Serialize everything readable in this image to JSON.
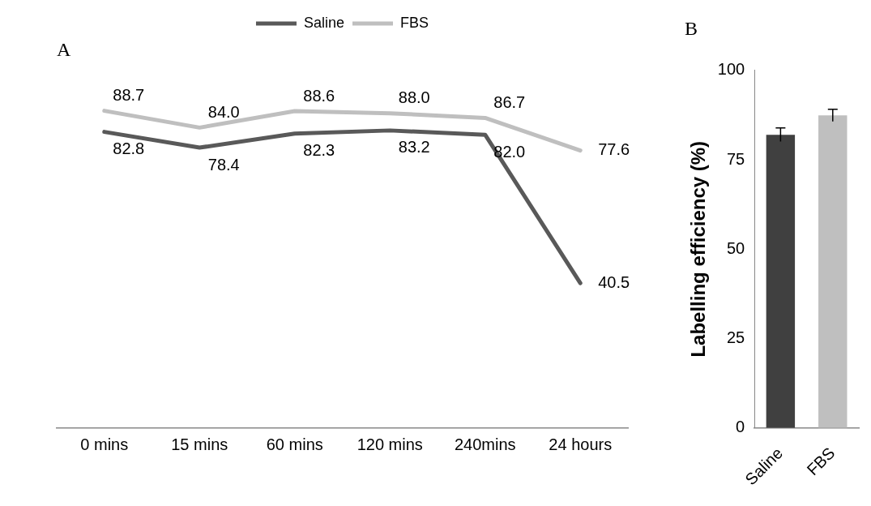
{
  "chart_data": [
    {
      "type": "line",
      "title": "A",
      "categories": [
        "0 mins",
        "15 mins",
        "60 mins",
        "120 mins",
        "240mins",
        "24 hours"
      ],
      "series": [
        {
          "name": "Saline",
          "color": "#595959",
          "values": [
            82.8,
            78.4,
            82.3,
            83.2,
            82.0,
            40.5
          ],
          "value_labels": [
            "82.8",
            "78.4",
            "82.3",
            "83.2",
            "82.0",
            "40.5"
          ]
        },
        {
          "name": "FBS",
          "color": "#bfbfbf",
          "values": [
            88.7,
            84.0,
            88.6,
            88.0,
            86.7,
            77.6
          ],
          "value_labels": [
            "88.7",
            "84.0",
            "88.6",
            "88.0",
            "86.7",
            "77.6"
          ]
        }
      ],
      "ylim": [
        0,
        100
      ],
      "data_labels": true,
      "legend": "top",
      "marker": "none",
      "grid": false,
      "tick_labels": "x"
    },
    {
      "type": "bar",
      "title": "B",
      "categories": [
        "Saline",
        "FBS"
      ],
      "values": [
        82.0,
        87.4
      ],
      "colors": [
        "#404040",
        "#bfbfbf"
      ],
      "errors": [
        1.9,
        1.7
      ],
      "ylabel": "Labelling efficiency (%)",
      "ylim": [
        0,
        100
      ],
      "yticks": [
        0,
        25,
        50,
        75,
        100
      ],
      "grid": false
    }
  ]
}
